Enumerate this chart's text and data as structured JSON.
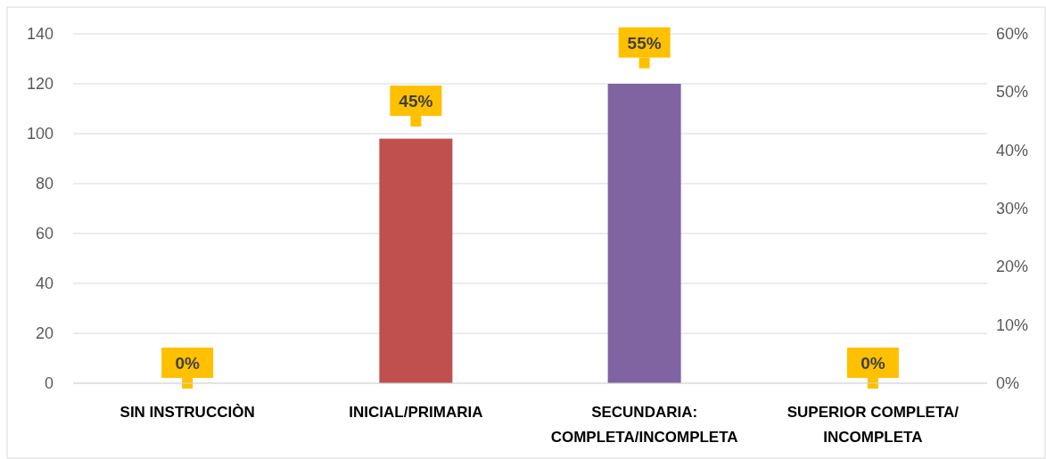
{
  "chart_data": {
    "type": "bar",
    "categories": [
      "SIN INSTRUCCIÒN",
      "INICIAL/PRIMARIA",
      "SECUNDARIA: COMPLETA/INCOMPLETA",
      "SUPERIOR COMPLETA/ INCOMPLETA"
    ],
    "series": [
      {
        "values": [
          0,
          98,
          120,
          0
        ],
        "colors": [
          "#4f81bd",
          "#c0504d",
          "#8064a2",
          "#9bbb59"
        ]
      },
      {
        "type": "scatter",
        "marker": "square",
        "x": [
          "SIN INSTRUCCIÒN",
          "INICIAL/PRIMARIA",
          "SECUNDARIA: COMPLETA/INCOMPLETA",
          "SUPERIOR COMPLETA/ INCOMPLETA"
        ],
        "axis": "y2",
        "values": [
          0,
          45,
          55,
          0
        ],
        "value_labels": [
          "0%",
          "45%",
          "55%",
          "0%"
        ],
        "color": "#ffc000"
      }
    ],
    "ylim": [
      0,
      140
    ],
    "yticks": [
      0,
      20,
      40,
      60,
      80,
      100,
      120,
      140
    ],
    "y2lim": [
      0,
      60
    ],
    "y2ticks": [
      {
        "value": 0,
        "label": "0%"
      },
      {
        "value": 10,
        "label": "10%"
      },
      {
        "value": 20,
        "label": "20%"
      },
      {
        "value": 30,
        "label": "30%"
      },
      {
        "value": 40,
        "label": "40%"
      },
      {
        "value": 50,
        "label": "50%"
      },
      {
        "value": 60,
        "label": "60%"
      }
    ],
    "grid": "y"
  }
}
